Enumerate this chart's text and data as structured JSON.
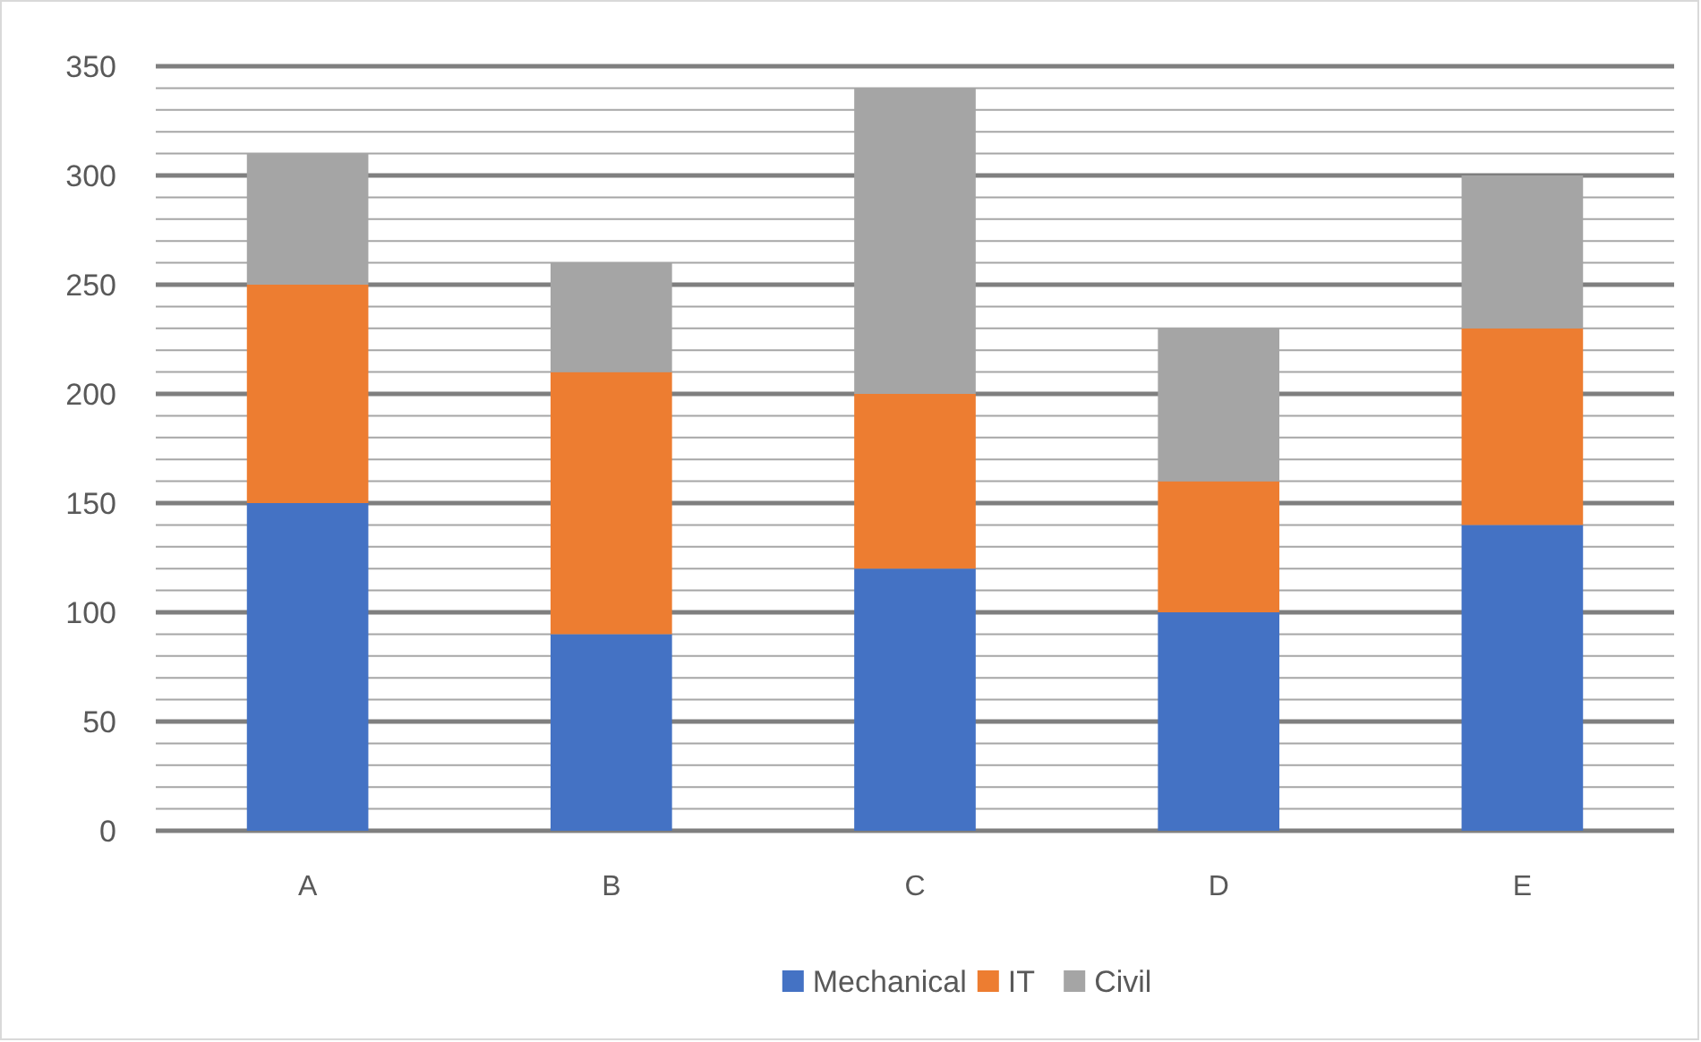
{
  "chart_data": {
    "type": "bar",
    "stacked": true,
    "categories": [
      "A",
      "B",
      "C",
      "D",
      "E"
    ],
    "series": [
      {
        "name": "Mechanical",
        "color": "#4472c4",
        "values": [
          150,
          90,
          120,
          100,
          140
        ]
      },
      {
        "name": "IT",
        "color": "#ed7d31",
        "values": [
          100,
          120,
          80,
          60,
          90
        ]
      },
      {
        "name": "Civil",
        "color": "#a5a5a5",
        "values": [
          60,
          50,
          140,
          70,
          70
        ]
      }
    ],
    "ylim": [
      0,
      350
    ],
    "yticks": [
      0,
      {
        "value": 10,
        "label": null
      },
      {
        "value": 20,
        "label": null
      },
      {
        "value": 30,
        "label": null
      },
      {
        "value": 40,
        "label": null
      },
      50,
      {
        "value": 60,
        "label": null
      },
      {
        "value": 70,
        "label": null
      },
      {
        "value": 80,
        "label": null
      },
      {
        "value": 90,
        "label": null
      },
      100,
      {
        "value": 110,
        "label": null
      },
      {
        "value": 120,
        "label": null
      },
      {
        "value": 130,
        "label": null
      },
      {
        "value": 140,
        "label": null
      },
      150,
      {
        "value": 160,
        "label": null
      },
      {
        "value": 170,
        "label": null
      },
      {
        "value": 180,
        "label": null
      },
      {
        "value": 190,
        "label": null
      },
      200,
      {
        "value": 210,
        "label": null
      },
      {
        "value": 220,
        "label": null
      },
      {
        "value": 230,
        "label": null
      },
      {
        "value": 240,
        "label": null
      },
      250,
      {
        "value": 260,
        "label": null
      },
      {
        "value": 270,
        "label": null
      },
      {
        "value": 280,
        "label": null
      },
      {
        "value": 290,
        "label": null
      },
      300,
      {
        "value": 310,
        "label": null
      },
      {
        "value": 320,
        "label": null
      },
      {
        "value": 330,
        "label": null
      },
      {
        "value": 340,
        "label": null
      },
      350
    ],
    "grid": true,
    "legend": "bottom"
  }
}
